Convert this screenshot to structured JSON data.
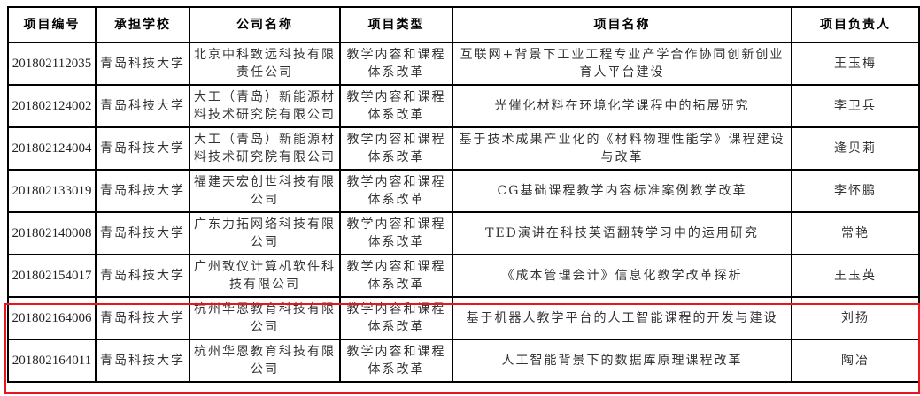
{
  "headers": [
    "项目编号",
    "承担学校",
    "公司名称",
    "项目类型",
    "项目名称",
    "项目负责人"
  ],
  "rows": [
    {
      "id": "201802112035",
      "school": "青岛科技大学",
      "company": "北京中科致远科技有限责任公司",
      "type": "教学内容和课程体系改革",
      "project": "互联网+背景下工业工程专业产学合作协同创新创业育人平台建设",
      "leader": "王玉梅"
    },
    {
      "id": "201802124002",
      "school": "青岛科技大学",
      "company": "大工（青岛）新能源材料技术研究院有限公司",
      "type": "教学内容和课程体系改革",
      "project": "光催化材料在环境化学课程中的拓展研究",
      "leader": "李卫兵"
    },
    {
      "id": "201802124004",
      "school": "青岛科技大学",
      "company": "大工（青岛）新能源材料技术研究院有限公司",
      "type": "教学内容和课程体系改革",
      "project": "基于技术成果产业化的《材料物理性能学》课程建设与改革",
      "leader": "逄贝莉"
    },
    {
      "id": "201802133019",
      "school": "青岛科技大学",
      "company": "福建天宏创世科技有限公司",
      "type": "教学内容和课程体系改革",
      "project": "CG基础课程教学内容标准案例教学改革",
      "leader": "李怀鹏"
    },
    {
      "id": "201802140008",
      "school": "青岛科技大学",
      "company": "广东力拓网络科技有限公司",
      "type": "教学内容和课程体系改革",
      "project": "TED演讲在科技英语翻转学习中的运用研究",
      "leader": "常艳"
    },
    {
      "id": "201802154017",
      "school": "青岛科技大学",
      "company": "广州致仪计算机软件科技有限公司",
      "type": "教学内容和课程体系改革",
      "project": "《成本管理会计》信息化教学改革探析",
      "leader": "王玉英"
    },
    {
      "id": "201802164006",
      "school": "青岛科技大学",
      "company": "杭州华恩教育科技有限公司",
      "type": "教学内容和课程体系改革",
      "project": "基于机器人教学平台的人工智能课程的开发与建设",
      "leader": "刘扬"
    },
    {
      "id": "201802164011",
      "school": "青岛科技大学",
      "company": "杭州华恩教育科技有限公司",
      "type": "教学内容和课程体系改革",
      "project": "人工智能背景下的数据库原理课程改革",
      "leader": "陶冶"
    }
  ],
  "highlight_color": "#e8141e"
}
